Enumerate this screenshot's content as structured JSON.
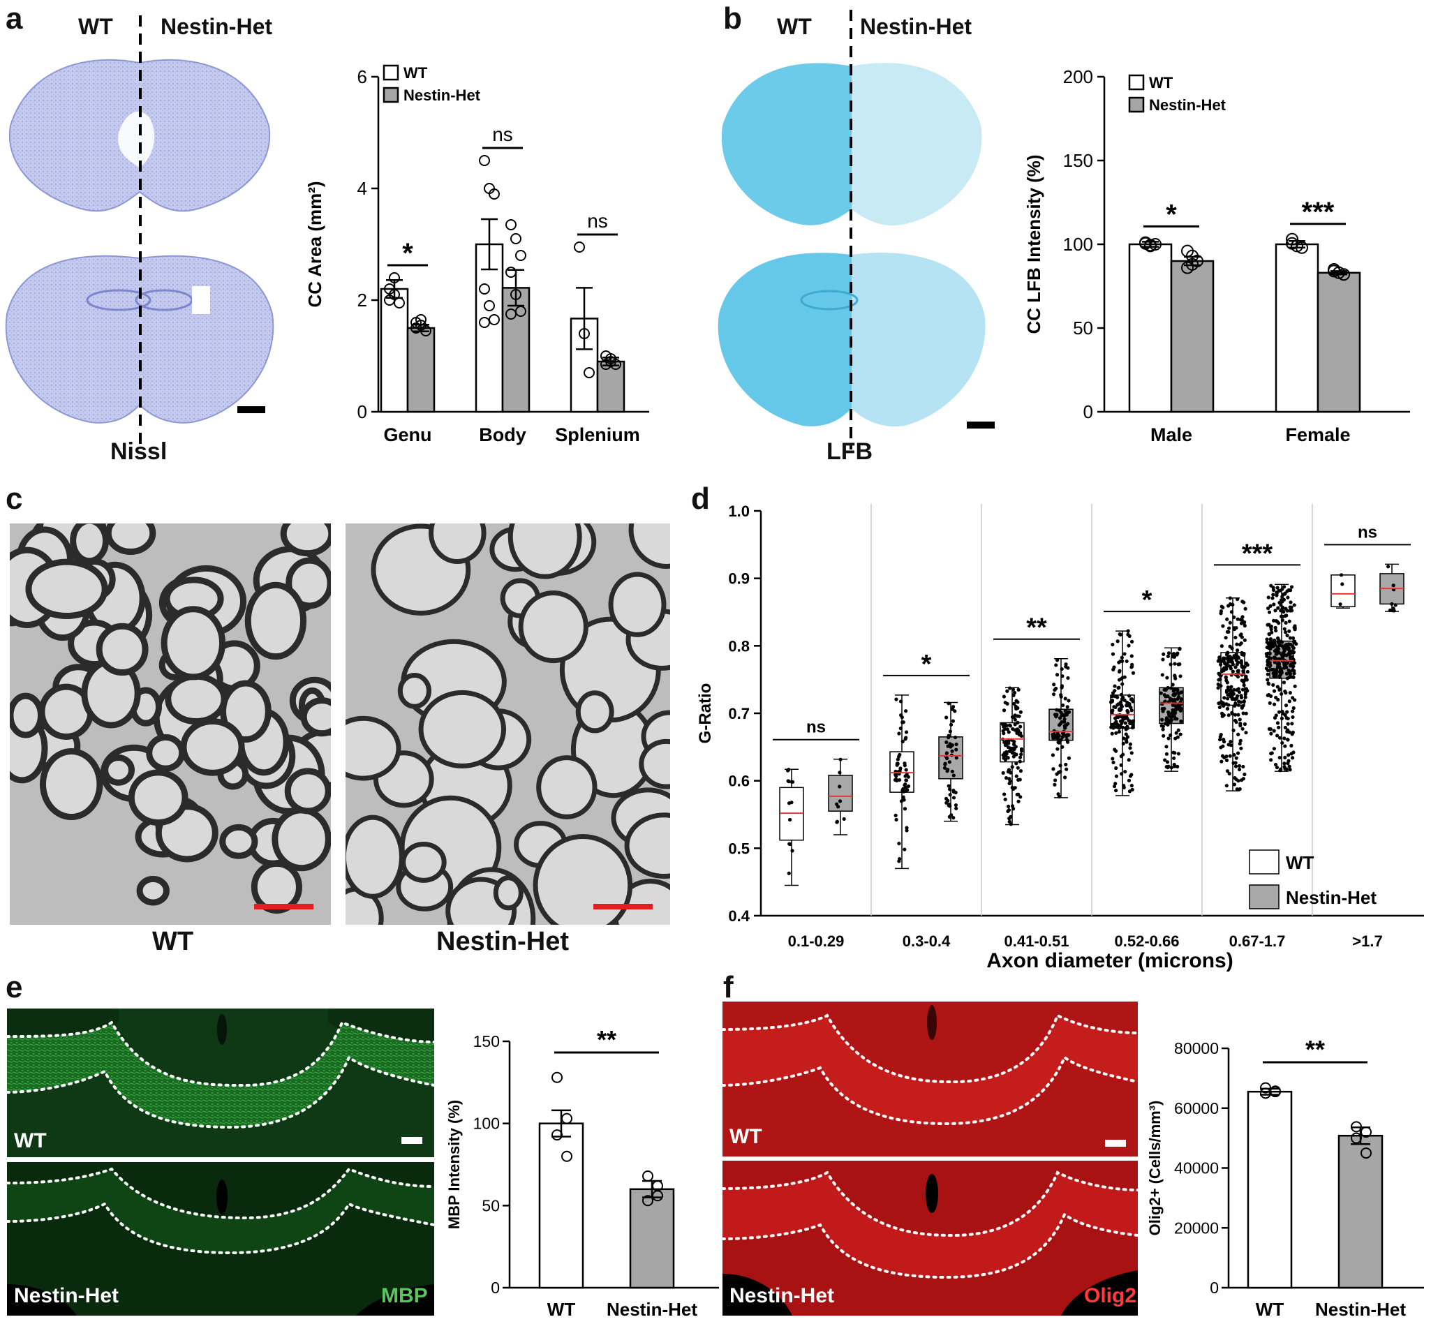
{
  "panel_letters": [
    "a",
    "b",
    "c",
    "d",
    "e",
    "f"
  ],
  "panel_a": {
    "image_left_label": "WT",
    "image_right_label": "Nestin-Het",
    "stain_label": "Nissl"
  },
  "panel_b": {
    "image_left_label": "WT",
    "image_right_label": "Nestin-Het",
    "stain_label": "LFB"
  },
  "panel_c": {
    "left_label": "WT",
    "right_label": "Nestin-Het"
  },
  "panel_e": {
    "top_label": "WT",
    "bottom_label": "Nestin-Het",
    "marker_label": "MBP"
  },
  "panel_f": {
    "top_label": "WT",
    "bottom_label": "Nestin-Het",
    "marker_label": "Olig2"
  },
  "colors": {
    "wt_fill": "#ffffff",
    "het_fill": "#a6a6a6",
    "nissl": "#8f98d6",
    "lfb": "#5ec6e6",
    "mbp": "#2f9a35",
    "olig2": "#e21b1b",
    "mean_line": "#e53935",
    "scale_bar_red": "#e02020"
  },
  "chart_data": [
    {
      "id": "a",
      "type": "bar",
      "categories": [
        "Genu",
        "Body",
        "Splenium"
      ],
      "ylabel": "CC Area (mm²)",
      "ylim": [
        0,
        6
      ],
      "yticks": [
        0,
        2,
        4,
        6
      ],
      "legend": [
        "WT",
        "Nestin-Het"
      ],
      "legend_position": "top-left",
      "series": [
        {
          "name": "WT",
          "values": [
            2.2,
            3.0,
            1.67
          ],
          "sem": [
            0.16,
            0.45,
            0.55
          ],
          "points": [
            [
              2.2,
              2.1,
              1.95,
              2.0,
              2.4
            ],
            [
              4.5,
              4.0,
              3.9,
              2.2,
              1.9,
              1.65,
              1.6
            ],
            [
              2.95,
              1.4,
              0.7
            ]
          ]
        },
        {
          "name": "Nestin-Het",
          "values": [
            1.5,
            2.22,
            0.9
          ],
          "sem": [
            0.06,
            0.32,
            0.07
          ],
          "points": [
            [
              1.6,
              1.55,
              1.45,
              1.5,
              1.65
            ],
            [
              3.35,
              3.1,
              2.8,
              2.5,
              2.1,
              1.8,
              1.75
            ],
            [
              1.0,
              0.9,
              0.85,
              0.85,
              0.95
            ]
          ]
        }
      ],
      "annotations": [
        "*",
        "ns",
        "ns"
      ]
    },
    {
      "id": "b",
      "type": "bar",
      "categories": [
        "Male",
        "Female"
      ],
      "ylabel": "CC LFB Intensity (%)",
      "ylim": [
        0,
        200
      ],
      "yticks": [
        0,
        50,
        100,
        150,
        200
      ],
      "legend": [
        "WT",
        "Nestin-Het"
      ],
      "legend_position": "top-left",
      "series": [
        {
          "name": "WT",
          "values": [
            100,
            100
          ],
          "sem": [
            1.5,
            2.0
          ],
          "points": [
            [
              101,
              99,
              100,
              100.5,
              99.5
            ],
            [
              103,
              99,
              98,
              100.5
            ]
          ]
        },
        {
          "name": "Nestin-Het",
          "values": [
            90,
            83
          ],
          "sem": [
            2.5,
            1.0
          ],
          "points": [
            [
              96,
              93,
              90,
              86,
              88
            ],
            [
              85,
              83,
              82,
              84
            ]
          ]
        }
      ],
      "annotations": [
        "*",
        "***"
      ]
    },
    {
      "id": "d",
      "type": "scatter",
      "categories": [
        "0.1-0.29",
        "0.3-0.4",
        "0.41-0.51",
        "0.52-0.66",
        "0.67-1.7",
        ">1.7"
      ],
      "xlabel": "Axon diameter (microns)",
      "ylabel": "G-Ratio",
      "ylim": [
        0.4,
        1.0
      ],
      "yticks": [
        "0.4",
        "0.5",
        "0.6",
        "0.7",
        "0.8",
        "0.9",
        "1.0"
      ],
      "legend": [
        "WT",
        "Nestin-Het"
      ],
      "legend_position": "bottom-right",
      "series": [
        {
          "name": "WT",
          "n": [
            14,
            60,
            120,
            160,
            260,
            3
          ],
          "box": [
            [
              0.445,
              0.512,
              0.552,
              0.59,
              0.617
            ],
            [
              0.47,
              0.583,
              0.612,
              0.643,
              0.727
            ],
            [
              0.535,
              0.628,
              0.662,
              0.686,
              0.738
            ],
            [
              0.578,
              0.678,
              0.698,
              0.727,
              0.822
            ],
            [
              0.585,
              0.712,
              0.758,
              0.79,
              0.871
            ],
            [
              0.856,
              0.858,
              0.877,
              0.905,
              0.905
            ]
          ]
        },
        {
          "name": "Nestin-Het",
          "n": [
            9,
            50,
            90,
            130,
            340,
            9
          ],
          "box": [
            [
              0.52,
              0.555,
              0.577,
              0.608,
              0.632
            ],
            [
              0.54,
              0.603,
              0.637,
              0.665,
              0.716
            ],
            [
              0.575,
              0.66,
              0.673,
              0.706,
              0.781
            ],
            [
              0.614,
              0.685,
              0.715,
              0.738,
              0.797
            ],
            [
              0.614,
              0.752,
              0.778,
              0.807,
              0.891
            ],
            [
              0.851,
              0.862,
              0.885,
              0.907,
              0.921
            ]
          ]
        }
      ],
      "annotations": [
        "ns",
        "*",
        "**",
        "*",
        "***",
        "ns"
      ]
    },
    {
      "id": "e",
      "type": "bar",
      "categories": [
        "WT",
        "Nestin-Het"
      ],
      "ylabel": "MBP Intensity (%)",
      "ylim": [
        0,
        150
      ],
      "yticks": [
        0,
        50,
        100,
        150
      ],
      "values": [
        100,
        60
      ],
      "sem": [
        8,
        5
      ],
      "points": [
        [
          128,
          103,
          93,
          80
        ],
        [
          68,
          62,
          53,
          56
        ]
      ],
      "annotations": [
        "**"
      ]
    },
    {
      "id": "f",
      "type": "bar",
      "categories": [
        "WT",
        "Nestin-Het"
      ],
      "ylabel": "Olig2+ (Cells/mm³)",
      "ylim": [
        0,
        80000
      ],
      "yticks": [
        0,
        20000,
        40000,
        60000,
        80000
      ],
      "values": [
        65500,
        50800
      ],
      "sem": [
        1000,
        2800
      ],
      "points": [
        [
          66800,
          65700,
          65000,
          65500
        ],
        [
          53800,
          52000,
          50000,
          45000
        ]
      ],
      "annotations": [
        "**"
      ]
    }
  ]
}
